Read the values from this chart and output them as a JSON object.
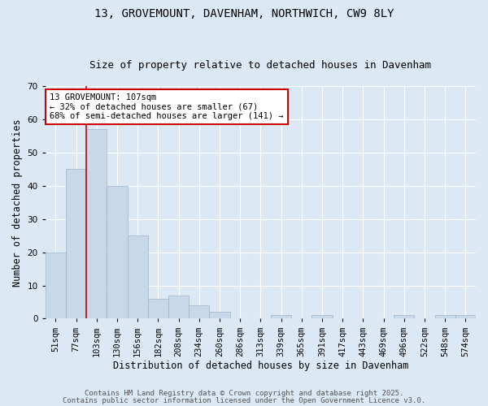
{
  "title1": "13, GROVEMOUNT, DAVENHAM, NORTHWICH, CW9 8LY",
  "title2": "Size of property relative to detached houses in Davenham",
  "xlabel": "Distribution of detached houses by size in Davenham",
  "ylabel": "Number of detached properties",
  "categories": [
    "51sqm",
    "77sqm",
    "103sqm",
    "130sqm",
    "156sqm",
    "182sqm",
    "208sqm",
    "234sqm",
    "260sqm",
    "286sqm",
    "313sqm",
    "339sqm",
    "365sqm",
    "391sqm",
    "417sqm",
    "443sqm",
    "469sqm",
    "496sqm",
    "522sqm",
    "548sqm",
    "574sqm"
  ],
  "values": [
    20,
    45,
    57,
    40,
    25,
    6,
    7,
    4,
    2,
    0,
    0,
    1,
    0,
    1,
    0,
    0,
    0,
    1,
    0,
    1,
    1
  ],
  "bar_color": "#c8d8e8",
  "bar_edge_color": "#9ab4cc",
  "vline_x": 2,
  "vline_color": "#cc0000",
  "annotation_text": "13 GROVEMOUNT: 107sqm\n← 32% of detached houses are smaller (67)\n68% of semi-detached houses are larger (141) →",
  "annotation_box_facecolor": "#ffffff",
  "annotation_box_edge": "#cc0000",
  "ylim": [
    0,
    70
  ],
  "yticks": [
    0,
    10,
    20,
    30,
    40,
    50,
    60,
    70
  ],
  "footer1": "Contains HM Land Registry data © Crown copyright and database right 2025.",
  "footer2": "Contains public sector information licensed under the Open Government Licence v3.0.",
  "background_color": "#dce8f4",
  "plot_background": "#dce8f4",
  "grid_color": "#ffffff",
  "title_fontsize": 10,
  "subtitle_fontsize": 9,
  "axis_label_fontsize": 8.5,
  "tick_fontsize": 7.5,
  "annotation_fontsize": 7.5,
  "footer_fontsize": 6.5
}
